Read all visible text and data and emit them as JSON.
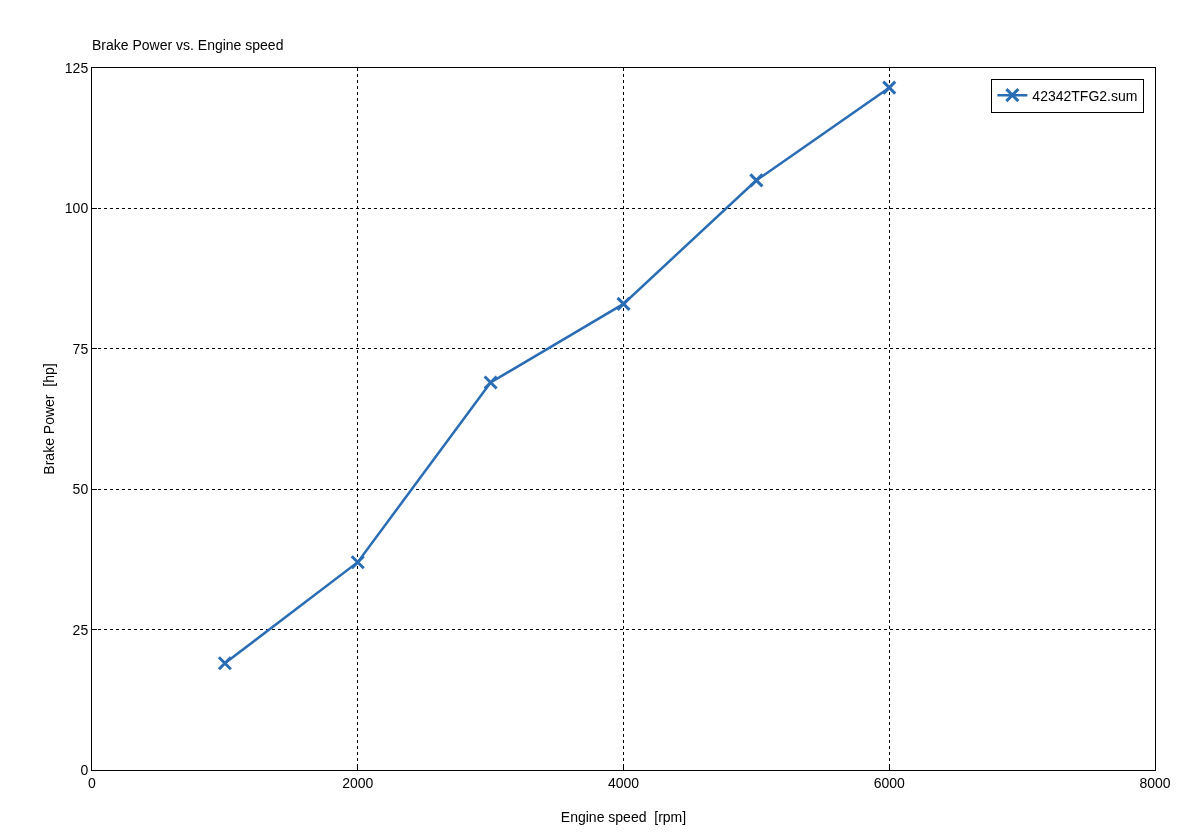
{
  "chart_data": {
    "type": "line",
    "title": "Brake Power vs. Engine speed",
    "xlabel": "Engine speed  [rpm]",
    "ylabel": "Brake Power  [hp]",
    "x": [
      1000,
      2000,
      3000,
      4000,
      5000,
      6000
    ],
    "series": [
      {
        "name": "42342TFG2.sum",
        "color": "#2a6db5",
        "values": [
          19,
          37,
          69,
          83,
          105,
          121.5
        ]
      }
    ],
    "xlim": [
      0,
      8000
    ],
    "xticks": [
      0,
      2000,
      4000,
      6000,
      8000
    ],
    "ylim": [
      0,
      125
    ],
    "yticks": [
      0,
      25,
      50,
      75,
      100,
      125
    ],
    "grid": true,
    "legend": "top right",
    "marker": "cross",
    "line_style": "solid"
  }
}
